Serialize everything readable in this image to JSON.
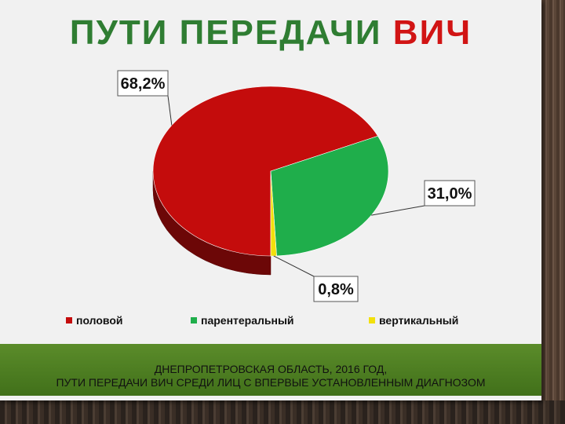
{
  "slide": {
    "title_part1": "ПУТИ ПЕРЕДАЧИ",
    "title_part2": "ВИЧ",
    "title_colors": {
      "part1": "#2f7d32",
      "part2": "#d11414"
    },
    "footer_line1": "ДНЕПРОПЕТРОВСКАЯ ОБЛАСТЬ, 2016 ГОД,",
    "footer_line2": "ПУТИ ПЕРЕДАЧИ ВИЧ СРЕДИ ЛИЦ С ВПЕРВЫЕ УСТАНОВЛЕННЫМ ДИАГНОЗОМ"
  },
  "chart_data": {
    "type": "pie",
    "title": "",
    "categories": [
      "половой",
      "парентеральный",
      "вертикальный"
    ],
    "values": [
      68.2,
      31.0,
      0.8
    ],
    "data_labels": [
      "68,2%",
      "31,0%",
      "0,8%"
    ],
    "colors": [
      "#c40c0c",
      "#1fae4b",
      "#f2e00c"
    ],
    "legend_position": "bottom",
    "style": "3d"
  }
}
